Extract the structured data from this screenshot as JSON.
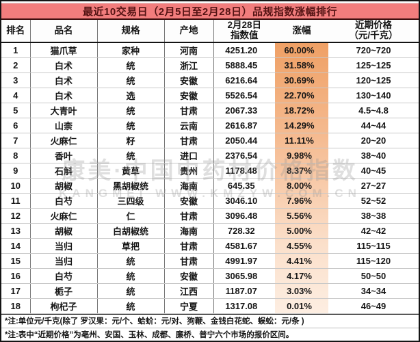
{
  "title": "最近10交易日（2月5日至2月28日）品规指数涨幅排行",
  "table": {
    "headers": {
      "rank": "排名",
      "name": "品名",
      "spec": "规格",
      "origin": "产地",
      "index_line1": "2月28日",
      "index_line2": "指数值",
      "change": "涨幅",
      "price_line1": "近期价格",
      "price_line2": "（元/千克）"
    },
    "rows": [
      {
        "rank": "1",
        "name": "猫爪草",
        "spec": "家种",
        "origin": "河南",
        "index": "4251.20",
        "change": "60.00%",
        "price": "720~720"
      },
      {
        "rank": "2",
        "name": "白术",
        "spec": "统",
        "origin": "浙江",
        "index": "5888.45",
        "change": "31.58%",
        "price": "125~125"
      },
      {
        "rank": "3",
        "name": "白术",
        "spec": "统",
        "origin": "安徽",
        "index": "6216.64",
        "change": "30.69%",
        "price": "120~125"
      },
      {
        "rank": "4",
        "name": "白术",
        "spec": "选",
        "origin": "安徽",
        "index": "5526.54",
        "change": "22.70%",
        "price": "130~140"
      },
      {
        "rank": "5",
        "name": "大青叶",
        "spec": "统",
        "origin": "甘肃",
        "index": "2067.33",
        "change": "18.72%",
        "price": "4.5~4.8"
      },
      {
        "rank": "6",
        "name": "山柰",
        "spec": "统",
        "origin": "云南",
        "index": "2616.87",
        "change": "14.29%",
        "price": "44~44"
      },
      {
        "rank": "7",
        "name": "火麻仁",
        "spec": "籽",
        "origin": "甘肃",
        "index": "2050.44",
        "change": "11.11%",
        "price": "20~20"
      },
      {
        "rank": "8",
        "name": "香叶",
        "spec": "统",
        "origin": "进口",
        "index": "2376.54",
        "change": "9.98%",
        "price": "38~40"
      },
      {
        "rank": "9",
        "name": "石斛",
        "spec": "黄草",
        "origin": "贵州",
        "index": "1178.48",
        "change": "8.37%",
        "price": "40~45"
      },
      {
        "rank": "10",
        "name": "胡椒",
        "spec": "黑胡椒统",
        "origin": "海南",
        "index": "645.35",
        "change": "8.00%",
        "price": "27~27"
      },
      {
        "rank": "11",
        "name": "白芍",
        "spec": "三四级",
        "origin": "安徽",
        "index": "3046.10",
        "change": "7.96%",
        "price": "52~52"
      },
      {
        "rank": "12",
        "name": "火麻仁",
        "spec": "仁",
        "origin": "甘肃",
        "index": "3096.48",
        "change": "5.56%",
        "price": "38~38"
      },
      {
        "rank": "13",
        "name": "胡椒",
        "spec": "白胡椒统",
        "origin": "海南",
        "index": "728.32",
        "change": "5.00%",
        "price": "42~42"
      },
      {
        "rank": "14",
        "name": "当归",
        "spec": "草把",
        "origin": "甘肃",
        "index": "4581.67",
        "change": "4.55%",
        "price": "115~115"
      },
      {
        "rank": "15",
        "name": "当归",
        "spec": "统",
        "origin": "甘肃",
        "index": "4991.97",
        "change": "4.41%",
        "price": "115~120"
      },
      {
        "rank": "16",
        "name": "白芍",
        "spec": "统",
        "origin": "安徽",
        "index": "3065.98",
        "change": "4.17%",
        "price": "50~50"
      },
      {
        "rank": "17",
        "name": "栀子",
        "spec": "统",
        "origin": "江西",
        "index": "1187.07",
        "change": "3.03%",
        "price": "34~34"
      },
      {
        "rank": "18",
        "name": "枸杞子",
        "spec": "统",
        "origin": "宁夏",
        "index": "1317.08",
        "change": "0.01%",
        "price": "46~49"
      }
    ]
  },
  "footnotes": [
    "*注:单位元/千克(除了 罗汉果：元/个、蛤蚧：元/对、狗鞭、金钱白花蛇、蜈蚣：元/条 )",
    "*注:表中“近期价格”为亳州、安国、玉林、成都、廉桥、普宁六个市场的报价区间。"
  ],
  "watermark": {
    "line1": "康美·中国中药材价格指数",
    "line2": "KANGMEI WWW.KMZYW.COM.CN"
  },
  "colors": {
    "title_bg": "#f27d7d",
    "title_text": "#541313",
    "highlight_top": "#efa065",
    "highlight_bottom": "#fdeee2",
    "grid_heavy": "#141414",
    "grid_light": "#c8c8c8"
  }
}
